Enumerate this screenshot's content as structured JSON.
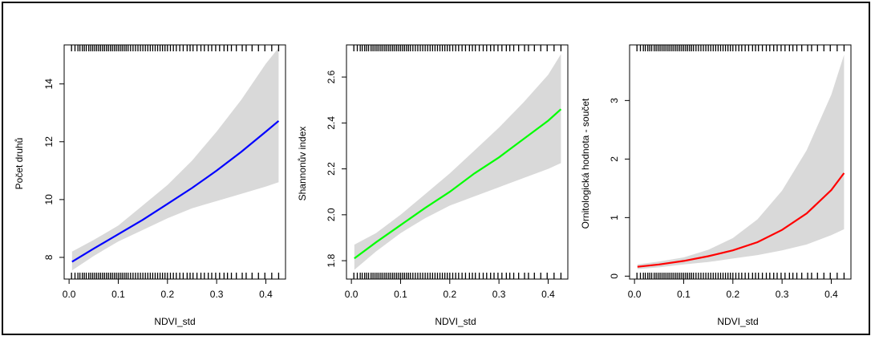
{
  "chart_data": [
    {
      "type": "line",
      "xlabel": "NDVI_std",
      "ylabel": "Počet druhů",
      "xlim": [
        -0.01,
        0.44
      ],
      "ylim": [
        7.25,
        15.35
      ],
      "xticks": [
        "0.0",
        "0.1",
        "0.2",
        "0.3",
        "0.4"
      ],
      "yticks": [
        "8",
        "10",
        "12",
        "14"
      ],
      "line_color": "#0000ff",
      "band_color": "#d9d9d9",
      "x": [
        0.006,
        0.05,
        0.1,
        0.15,
        0.2,
        0.25,
        0.3,
        0.35,
        0.4,
        0.426
      ],
      "y": [
        7.85,
        8.3,
        8.8,
        9.3,
        9.85,
        10.4,
        11.0,
        11.65,
        12.35,
        12.72
      ],
      "lower": [
        7.55,
        8.05,
        8.55,
        8.95,
        9.35,
        9.7,
        9.95,
        10.2,
        10.45,
        10.6
      ],
      "upper": [
        8.2,
        8.6,
        9.1,
        9.8,
        10.5,
        11.35,
        12.35,
        13.45,
        14.7,
        15.25
      ]
    },
    {
      "type": "line",
      "xlabel": "NDVI_std",
      "ylabel": "Shannonův index",
      "xlim": [
        -0.01,
        0.44
      ],
      "ylim": [
        1.72,
        2.74
      ],
      "xticks": [
        "0.0",
        "0.1",
        "0.2",
        "0.3",
        "0.4"
      ],
      "yticks": [
        "1.8",
        "2.0",
        "2.2",
        "2.4",
        "2.6"
      ],
      "line_color": "#00ff00",
      "band_color": "#d9d9d9",
      "x": [
        0.006,
        0.05,
        0.1,
        0.15,
        0.2,
        0.25,
        0.3,
        0.35,
        0.4,
        0.426
      ],
      "y": [
        1.81,
        1.88,
        1.955,
        2.03,
        2.1,
        2.18,
        2.25,
        2.33,
        2.41,
        2.46
      ],
      "lower": [
        1.76,
        1.84,
        1.92,
        1.985,
        2.04,
        2.08,
        2.12,
        2.16,
        2.2,
        2.225
      ],
      "upper": [
        1.87,
        1.92,
        2.0,
        2.09,
        2.18,
        2.28,
        2.38,
        2.49,
        2.61,
        2.7
      ]
    },
    {
      "type": "line",
      "xlabel": "NDVI_std",
      "ylabel": "Ornitologická hodnota - součet",
      "xlim": [
        -0.01,
        0.44
      ],
      "ylim": [
        -0.05,
        3.95
      ],
      "xticks": [
        "0.0",
        "0.1",
        "0.2",
        "0.3",
        "0.4"
      ],
      "yticks": [
        "0",
        "1",
        "2",
        "3"
      ],
      "line_color": "#ff0000",
      "band_color": "#d9d9d9",
      "x": [
        0.006,
        0.05,
        0.1,
        0.15,
        0.2,
        0.25,
        0.3,
        0.35,
        0.4,
        0.426
      ],
      "y": [
        0.16,
        0.2,
        0.26,
        0.34,
        0.44,
        0.58,
        0.79,
        1.07,
        1.47,
        1.76
      ],
      "lower": [
        0.12,
        0.15,
        0.2,
        0.24,
        0.3,
        0.36,
        0.44,
        0.54,
        0.7,
        0.8
      ],
      "upper": [
        0.2,
        0.25,
        0.32,
        0.45,
        0.65,
        0.97,
        1.46,
        2.15,
        3.1,
        3.78
      ]
    }
  ],
  "rug_positions": [
    0.005,
    0.012,
    0.018,
    0.022,
    0.027,
    0.031,
    0.035,
    0.04,
    0.044,
    0.048,
    0.052,
    0.056,
    0.06,
    0.064,
    0.068,
    0.072,
    0.076,
    0.08,
    0.084,
    0.088,
    0.092,
    0.096,
    0.1,
    0.104,
    0.108,
    0.112,
    0.116,
    0.12,
    0.125,
    0.13,
    0.135,
    0.14,
    0.145,
    0.15,
    0.155,
    0.16,
    0.165,
    0.17,
    0.175,
    0.18,
    0.185,
    0.19,
    0.195,
    0.2,
    0.206,
    0.212,
    0.218,
    0.225,
    0.232,
    0.24,
    0.246,
    0.252,
    0.26,
    0.268,
    0.275,
    0.283,
    0.29,
    0.298,
    0.306,
    0.315,
    0.322,
    0.33,
    0.34,
    0.352,
    0.36,
    0.372,
    0.385,
    0.398,
    0.412,
    0.426
  ]
}
